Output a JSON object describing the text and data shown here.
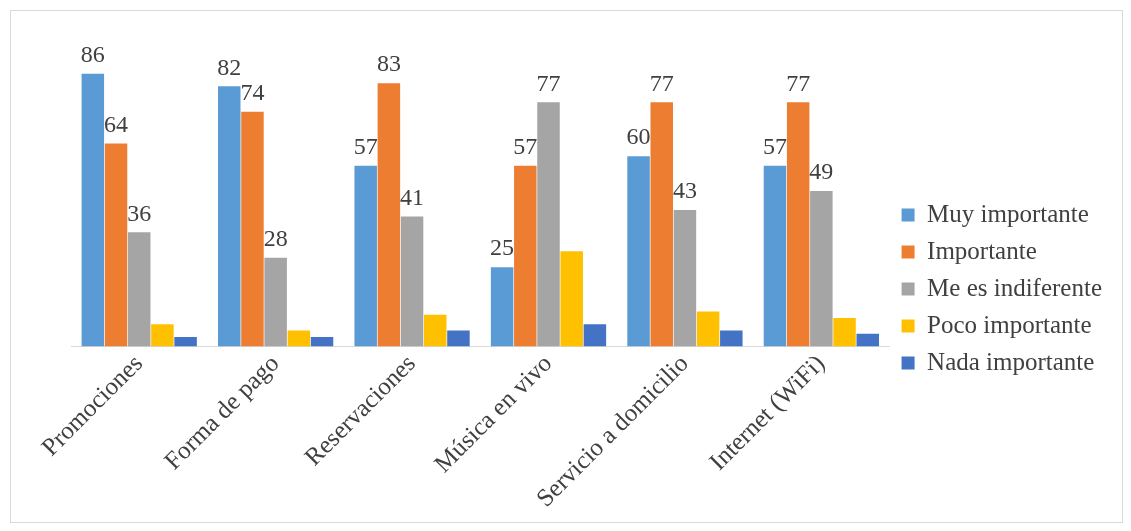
{
  "chart_data": {
    "type": "bar",
    "categories": [
      "Promociones",
      "Forma de pago",
      "Reservaciones",
      "Música en vivo",
      "Servicio a domicilio",
      "Internet (WiFi)"
    ],
    "series": [
      {
        "name": "Muy importante",
        "color": "#5b9bd5",
        "values": [
          86,
          82,
          57,
          25,
          60,
          57
        ],
        "value_labels": [
          "86",
          "82",
          "57",
          "25",
          "60",
          "57"
        ]
      },
      {
        "name": "Importante",
        "color": "#ed7d31",
        "values": [
          64,
          74,
          83,
          57,
          77,
          77
        ],
        "value_labels": [
          "64",
          "74",
          "83",
          "57",
          "77",
          "77"
        ]
      },
      {
        "name": "Me es indiferente",
        "color": "#a5a5a5",
        "values": [
          36,
          28,
          41,
          77,
          43,
          49
        ],
        "value_labels": [
          "36",
          "28",
          "41",
          "77",
          "43",
          "49"
        ]
      },
      {
        "name": "Poco importante",
        "color": "#ffc000",
        "values": [
          7,
          5,
          10,
          30,
          11,
          9
        ]
      },
      {
        "name": "Nada importante",
        "color": "#4472c4",
        "values": [
          3,
          3,
          5,
          7,
          5,
          4
        ]
      }
    ],
    "legend": "right",
    "grid": false
  }
}
